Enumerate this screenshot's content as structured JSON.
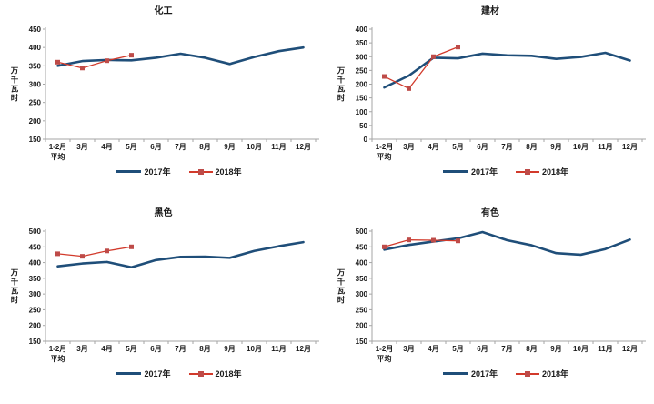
{
  "colors": {
    "series_2017": "#1F4E79",
    "series_2018_line": "#D23A2B",
    "series_2018_marker": "#BE4B48",
    "axis": "#A6A6A6",
    "text": "#1A1A1A"
  },
  "chart_data": [
    {
      "type": "line",
      "title": "化工",
      "ylabel": "万千瓦时",
      "ylim": [
        150,
        450
      ],
      "ytick_step": 50,
      "grid": false,
      "legend_position": "bottom",
      "categories": [
        "1-2月",
        "3月",
        "4月",
        "5月",
        "6月",
        "7月",
        "8月",
        "9月",
        "10月",
        "11月",
        "12月"
      ],
      "first_category_line2": "平均",
      "series": [
        {
          "name": "2017年",
          "color": "#1F4E79",
          "marker": "none",
          "values": [
            350,
            363,
            366,
            365,
            372,
            383,
            372,
            355,
            374,
            390,
            400
          ]
        },
        {
          "name": "2018年",
          "color": "#D23A2B",
          "marker": "square",
          "marker_color": "#BE4B48",
          "values": [
            360,
            344,
            364,
            379
          ]
        }
      ]
    },
    {
      "type": "line",
      "title": "建材",
      "ylabel": "万千瓦时",
      "ylim": [
        0,
        400
      ],
      "ytick_step": 50,
      "grid": false,
      "legend_position": "bottom",
      "categories": [
        "1-2月",
        "3月",
        "4月",
        "5月",
        "6月",
        "7月",
        "8月",
        "9月",
        "10月",
        "11月",
        "12月"
      ],
      "first_category_line2": "平均",
      "series": [
        {
          "name": "2017年",
          "color": "#1F4E79",
          "marker": "none",
          "values": [
            188,
            231,
            296,
            294,
            311,
            305,
            303,
            292,
            299,
            314,
            286
          ]
        },
        {
          "name": "2018年",
          "color": "#D23A2B",
          "marker": "square",
          "marker_color": "#BE4B48",
          "values": [
            228,
            184,
            300,
            335
          ]
        }
      ]
    },
    {
      "type": "line",
      "title": "黑色",
      "ylabel": "万千瓦时",
      "ylim": [
        150,
        500
      ],
      "ytick_step": 50,
      "grid": false,
      "legend_position": "bottom",
      "categories": [
        "1-2月",
        "3月",
        "4月",
        "5月",
        "6月",
        "7月",
        "8月",
        "9月",
        "10月",
        "11月",
        "12月"
      ],
      "first_category_line2": "平均",
      "series": [
        {
          "name": "2017年",
          "color": "#1F4E79",
          "marker": "none",
          "values": [
            388,
            397,
            402,
            385,
            408,
            418,
            419,
            415,
            437,
            452,
            465
          ]
        },
        {
          "name": "2018年",
          "color": "#D23A2B",
          "marker": "square",
          "marker_color": "#BE4B48",
          "values": [
            428,
            420,
            437,
            450
          ]
        }
      ]
    },
    {
      "type": "line",
      "title": "有色",
      "ylabel": "万千瓦时",
      "ylim": [
        150,
        500
      ],
      "ytick_step": 50,
      "grid": false,
      "legend_position": "bottom",
      "categories": [
        "1-2月",
        "3月",
        "4月",
        "5月",
        "6月",
        "7月",
        "8月",
        "9月",
        "10月",
        "11月",
        "12月"
      ],
      "first_category_line2": "平均",
      "series": [
        {
          "name": "2017年",
          "color": "#1F4E79",
          "marker": "none",
          "values": [
            441,
            456,
            467,
            477,
            497,
            471,
            455,
            430,
            425,
            443,
            473
          ]
        },
        {
          "name": "2018年",
          "color": "#D23A2B",
          "marker": "square",
          "marker_color": "#BE4B48",
          "values": [
            450,
            472,
            471,
            469
          ]
        }
      ]
    }
  ]
}
